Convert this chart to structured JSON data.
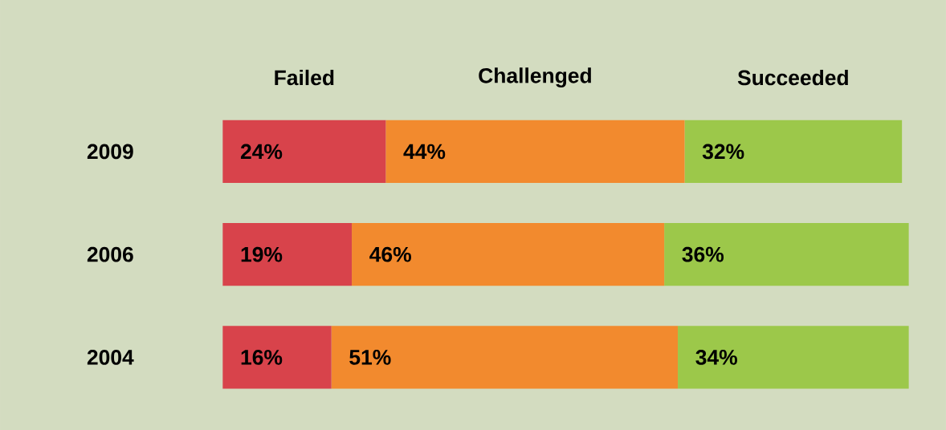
{
  "chart_data": {
    "type": "bar",
    "orientation": "horizontal",
    "stacked": true,
    "legend": "top",
    "categories": [
      "2009",
      "2006",
      "2004"
    ],
    "series": [
      {
        "name": "Failed",
        "color": "#d8434b",
        "values": [
          24,
          19,
          16
        ],
        "value_labels": [
          "24%",
          "19%",
          "16%"
        ]
      },
      {
        "name": "Challenged",
        "color": "#f28a2e",
        "values": [
          44,
          46,
          51
        ],
        "value_labels": [
          "44%",
          "46%",
          "51%"
        ]
      },
      {
        "name": "Succeeded",
        "color": "#9cc84a",
        "values": [
          32,
          36,
          34
        ],
        "value_labels": [
          "32%",
          "36%",
          "34%"
        ]
      }
    ]
  }
}
